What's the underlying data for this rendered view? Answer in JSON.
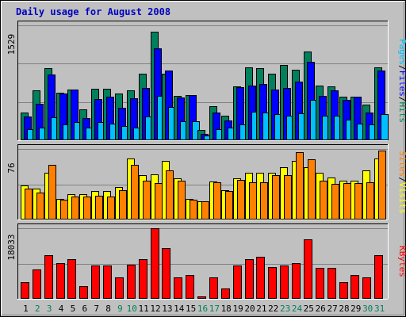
{
  "title": "Daily usage for August 2008",
  "colors": {
    "background": "#C0C0C0",
    "title": "#0000C0",
    "hits": "#00805C",
    "files": "#0000FF",
    "pages": "#00C0FF",
    "visits": "#FFFF00",
    "sites": "#FF8000",
    "kbytes": "#FF0000",
    "weekday": "#000000",
    "weekend": "#00805C"
  },
  "chart_data": [
    {
      "type": "bar",
      "panel": "hits-files-pages",
      "ymax_label": "1529",
      "legend": [
        "Pages",
        "/",
        "Files",
        "/",
        "Hits"
      ],
      "categories": [
        "1",
        "2",
        "3",
        "4",
        "5",
        "6",
        "7",
        "8",
        "9",
        "10",
        "11",
        "12",
        "13",
        "14",
        "15",
        "16",
        "17",
        "18",
        "19",
        "20",
        "21",
        "22",
        "23",
        "24",
        "25",
        "26",
        "27",
        "28",
        "29",
        "30",
        "31"
      ],
      "weekend": [
        false,
        true,
        true,
        false,
        false,
        false,
        false,
        false,
        true,
        true,
        false,
        false,
        false,
        false,
        false,
        true,
        true,
        false,
        false,
        false,
        false,
        false,
        true,
        true,
        false,
        false,
        false,
        false,
        false,
        true,
        true
      ],
      "ylim": [
        0,
        1529
      ],
      "series": [
        {
          "name": "Hits",
          "values": [
            367,
            666,
            963,
            630,
            679,
            406,
            686,
            686,
            618,
            666,
            883,
            1444,
            889,
            586,
            597,
            135,
            451,
            322,
            715,
            974,
            962,
            890,
            1006,
            941,
            1180,
            730,
            714,
            581,
            581,
            474,
            974
          ]
        },
        {
          "name": "Files",
          "values": [
            314,
            485,
            874,
            619,
            676,
            300,
            548,
            582,
            434,
            562,
            700,
            1221,
            931,
            569,
            597,
            82,
            366,
            268,
            702,
            730,
            746,
            673,
            693,
            782,
            1048,
            595,
            669,
            541,
            581,
            366,
            929
          ]
        },
        {
          "name": "Pages",
          "values": [
            152,
            164,
            306,
            214,
            243,
            164,
            242,
            221,
            187,
            164,
            314,
            588,
            442,
            249,
            254,
            58,
            150,
            164,
            214,
            378,
            364,
            348,
            330,
            361,
            536,
            325,
            331,
            272,
            220,
            211,
            348
          ]
        }
      ]
    },
    {
      "type": "bar",
      "panel": "visits-sites",
      "ymax_label": "76",
      "legend": [
        "Sites",
        "/",
        "Visits"
      ],
      "categories": [
        "1",
        "2",
        "3",
        "4",
        "5",
        "6",
        "7",
        "8",
        "9",
        "10",
        "11",
        "12",
        "13",
        "14",
        "15",
        "16",
        "17",
        "18",
        "19",
        "20",
        "21",
        "22",
        "23",
        "24",
        "25",
        "26",
        "27",
        "28",
        "29",
        "30",
        "31"
      ],
      "ylim": [
        0,
        76
      ],
      "series": [
        {
          "name": "Visits",
          "values": [
            37,
            33,
            50,
            22,
            27,
            27,
            31,
            31,
            35,
            66,
            48,
            49,
            63,
            44,
            22,
            20,
            41,
            32,
            44,
            50,
            50,
            50,
            56,
            63,
            56,
            50,
            45,
            42,
            42,
            53,
            66
          ]
        },
        {
          "name": "Sites",
          "values": [
            33,
            29,
            59,
            21,
            25,
            25,
            26,
            25,
            32,
            59,
            42,
            39,
            53,
            42,
            21,
            20,
            40,
            31,
            43,
            40,
            40,
            48,
            48,
            73,
            65,
            42,
            38,
            39,
            39,
            40,
            74
          ]
        }
      ]
    },
    {
      "type": "bar",
      "panel": "kbytes",
      "ymax_label": "18033",
      "legend": [
        "KBytes"
      ],
      "categories": [
        "1",
        "2",
        "3",
        "4",
        "5",
        "6",
        "7",
        "8",
        "9",
        "10",
        "11",
        "12",
        "13",
        "14",
        "15",
        "16",
        "17",
        "18",
        "19",
        "20",
        "21",
        "22",
        "23",
        "24",
        "25",
        "26",
        "27",
        "28",
        "29",
        "30",
        "31"
      ],
      "ylim": [
        0,
        18033
      ],
      "series": [
        {
          "name": "KBytes",
          "values": [
            4318,
            7405,
            11128,
            9124,
            10109,
            3259,
            8458,
            8458,
            5512,
            8791,
            10109,
            18033,
            12922,
            5512,
            6142,
            687,
            5512,
            2570,
            8458,
            10109,
            10809,
            8122,
            8458,
            9124,
            15172,
            7802,
            7802,
            4318,
            6142,
            5512,
            11128
          ]
        }
      ]
    }
  ]
}
